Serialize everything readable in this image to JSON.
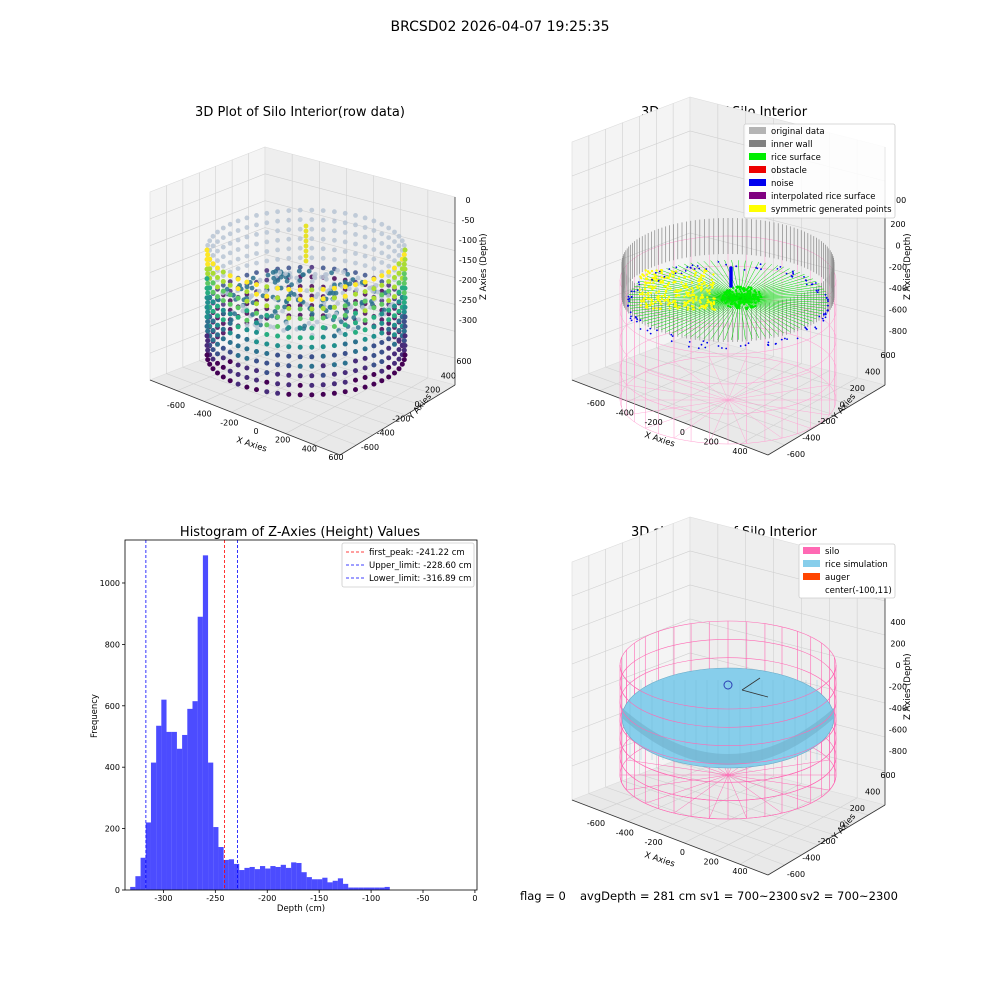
{
  "suptitle": "BRCSD02 2026-04-07 19:25:35",
  "footer": {
    "flag": "flag = 0",
    "avg_depth": "avgDepth = 281 cm",
    "sv1": "sv1 = 700~2300",
    "sv2": "sv2 = 700~2300"
  },
  "panel_raw": {
    "title": "3D Plot of Silo Interior(row data)",
    "xlabel": "X Axies",
    "ylabel": "Y Axies",
    "zlabel": "Z Axies (Depth)",
    "x_ticks": [
      "-600",
      "-400",
      "-200",
      "0",
      "200",
      "400",
      "600"
    ],
    "y_ticks": [
      "-600",
      "-400",
      "-200",
      "0",
      "200",
      "400",
      "600"
    ],
    "z_ticks": [
      "0",
      "-50",
      "-100",
      "-150",
      "-200",
      "-250",
      "-300"
    ]
  },
  "panel_classify": {
    "title": "3D classify of Silo Interior",
    "xlabel": "X Axies",
    "ylabel": "Y Axies",
    "zlabel": "Z Axies (Depth)",
    "x_ticks": [
      "-600",
      "-400",
      "-200",
      "0",
      "200",
      "400"
    ],
    "y_ticks": [
      "-600",
      "-400",
      "-200",
      "0",
      "200",
      "400",
      "600"
    ],
    "z_ticks": [
      "200",
      "0",
      "-200",
      "-400",
      "-600",
      "-800"
    ],
    "z_top_partial": "00",
    "legend": [
      {
        "label": "original data",
        "color": "#b4b4b4"
      },
      {
        "label": "inner wall",
        "color": "#808080"
      },
      {
        "label": "rice surface",
        "color": "#00ee00"
      },
      {
        "label": "obstacle",
        "color": "#ee0000"
      },
      {
        "label": "noise",
        "color": "#0000ee"
      },
      {
        "label": "interpolated rice surface",
        "color": "#800080"
      },
      {
        "label": "symmetric generated points",
        "color": "#ffff00"
      }
    ]
  },
  "panel_sim": {
    "title": "3D simulation of Silo Interior",
    "xlabel": "X Axies",
    "ylabel": "Y Axies",
    "zlabel": "Z Axies (Depth)",
    "x_ticks": [
      "-600",
      "-400",
      "-200",
      "0",
      "200",
      "400"
    ],
    "y_ticks": [
      "-600",
      "-400",
      "-200",
      "0",
      "200",
      "400",
      "600"
    ],
    "z_ticks": [
      "400",
      "200",
      "0",
      "-200",
      "-400",
      "-600",
      "-800"
    ],
    "legend": [
      {
        "label": "silo",
        "color": "#ff69b4"
      },
      {
        "label": "rice simulation",
        "color": "#87ceeb"
      },
      {
        "label": "auger",
        "color": "#ff4500"
      },
      {
        "label": "center(-100,11)",
        "color": ""
      }
    ]
  },
  "chart_data": {
    "type": "bar",
    "title": "Histogram of Z-Axies (Height) Values",
    "xlabel": "Depth (cm)",
    "ylabel": "Frequency",
    "xlim": [
      -337,
      2
    ],
    "ylim": [
      0,
      1140
    ],
    "x_ticks": [
      -300,
      -250,
      -200,
      -150,
      -100,
      -50,
      0
    ],
    "y_ticks": [
      0,
      200,
      400,
      600,
      800,
      1000
    ],
    "bar_color": "#0000ff",
    "bins": [
      {
        "x0": -332,
        "x1": -327,
        "count": 10
      },
      {
        "x0": -327,
        "x1": -322,
        "count": 45
      },
      {
        "x0": -322,
        "x1": -317,
        "count": 105
      },
      {
        "x0": -317,
        "x1": -312,
        "count": 220
      },
      {
        "x0": -312,
        "x1": -307,
        "count": 415
      },
      {
        "x0": -307,
        "x1": -302,
        "count": 535
      },
      {
        "x0": -302,
        "x1": -297,
        "count": 620
      },
      {
        "x0": -297,
        "x1": -292,
        "count": 515
      },
      {
        "x0": -292,
        "x1": -287,
        "count": 515
      },
      {
        "x0": -287,
        "x1": -282,
        "count": 460
      },
      {
        "x0": -282,
        "x1": -277,
        "count": 505
      },
      {
        "x0": -277,
        "x1": -272,
        "count": 590
      },
      {
        "x0": -272,
        "x1": -267,
        "count": 615
      },
      {
        "x0": -267,
        "x1": -262,
        "count": 890
      },
      {
        "x0": -262,
        "x1": -257,
        "count": 1090
      },
      {
        "x0": -257,
        "x1": -252,
        "count": 415
      },
      {
        "x0": -252,
        "x1": -247,
        "count": 205
      },
      {
        "x0": -247,
        "x1": -242,
        "count": 140
      },
      {
        "x0": -242,
        "x1": -237,
        "count": 98
      },
      {
        "x0": -237,
        "x1": -232,
        "count": 100
      },
      {
        "x0": -232,
        "x1": -227,
        "count": 85
      },
      {
        "x0": -227,
        "x1": -222,
        "count": 65
      },
      {
        "x0": -222,
        "x1": -217,
        "count": 72
      },
      {
        "x0": -217,
        "x1": -212,
        "count": 75
      },
      {
        "x0": -212,
        "x1": -207,
        "count": 68
      },
      {
        "x0": -207,
        "x1": -202,
        "count": 78
      },
      {
        "x0": -202,
        "x1": -197,
        "count": 70
      },
      {
        "x0": -197,
        "x1": -192,
        "count": 78
      },
      {
        "x0": -192,
        "x1": -187,
        "count": 75
      },
      {
        "x0": -187,
        "x1": -182,
        "count": 82
      },
      {
        "x0": -182,
        "x1": -177,
        "count": 72
      },
      {
        "x0": -177,
        "x1": -172,
        "count": 90
      },
      {
        "x0": -172,
        "x1": -167,
        "count": 88
      },
      {
        "x0": -167,
        "x1": -162,
        "count": 58
      },
      {
        "x0": -162,
        "x1": -157,
        "count": 42
      },
      {
        "x0": -157,
        "x1": -152,
        "count": 35
      },
      {
        "x0": -152,
        "x1": -147,
        "count": 35
      },
      {
        "x0": -147,
        "x1": -142,
        "count": 40
      },
      {
        "x0": -142,
        "x1": -137,
        "count": 25
      },
      {
        "x0": -137,
        "x1": -132,
        "count": 30
      },
      {
        "x0": -132,
        "x1": -127,
        "count": 38
      },
      {
        "x0": -127,
        "x1": -122,
        "count": 20
      },
      {
        "x0": -122,
        "x1": -117,
        "count": 8
      },
      {
        "x0": -117,
        "x1": -112,
        "count": 8
      },
      {
        "x0": -112,
        "x1": -107,
        "count": 8
      },
      {
        "x0": -107,
        "x1": -102,
        "count": 8
      },
      {
        "x0": -102,
        "x1": -97,
        "count": 8
      },
      {
        "x0": -97,
        "x1": -92,
        "count": 8
      },
      {
        "x0": -92,
        "x1": -87,
        "count": 8
      },
      {
        "x0": -87,
        "x1": -82,
        "count": 10
      }
    ],
    "vlines": [
      {
        "x": -241.22,
        "color": "#ff0000",
        "label": "first_peak: -241.22 cm"
      },
      {
        "x": -228.6,
        "color": "#0000ff",
        "label": "Upper_limit: -228.60 cm"
      },
      {
        "x": -316.89,
        "color": "#0000ff",
        "label": "Lower_limit: -316.89 cm"
      }
    ],
    "legend_position": "upper right"
  }
}
